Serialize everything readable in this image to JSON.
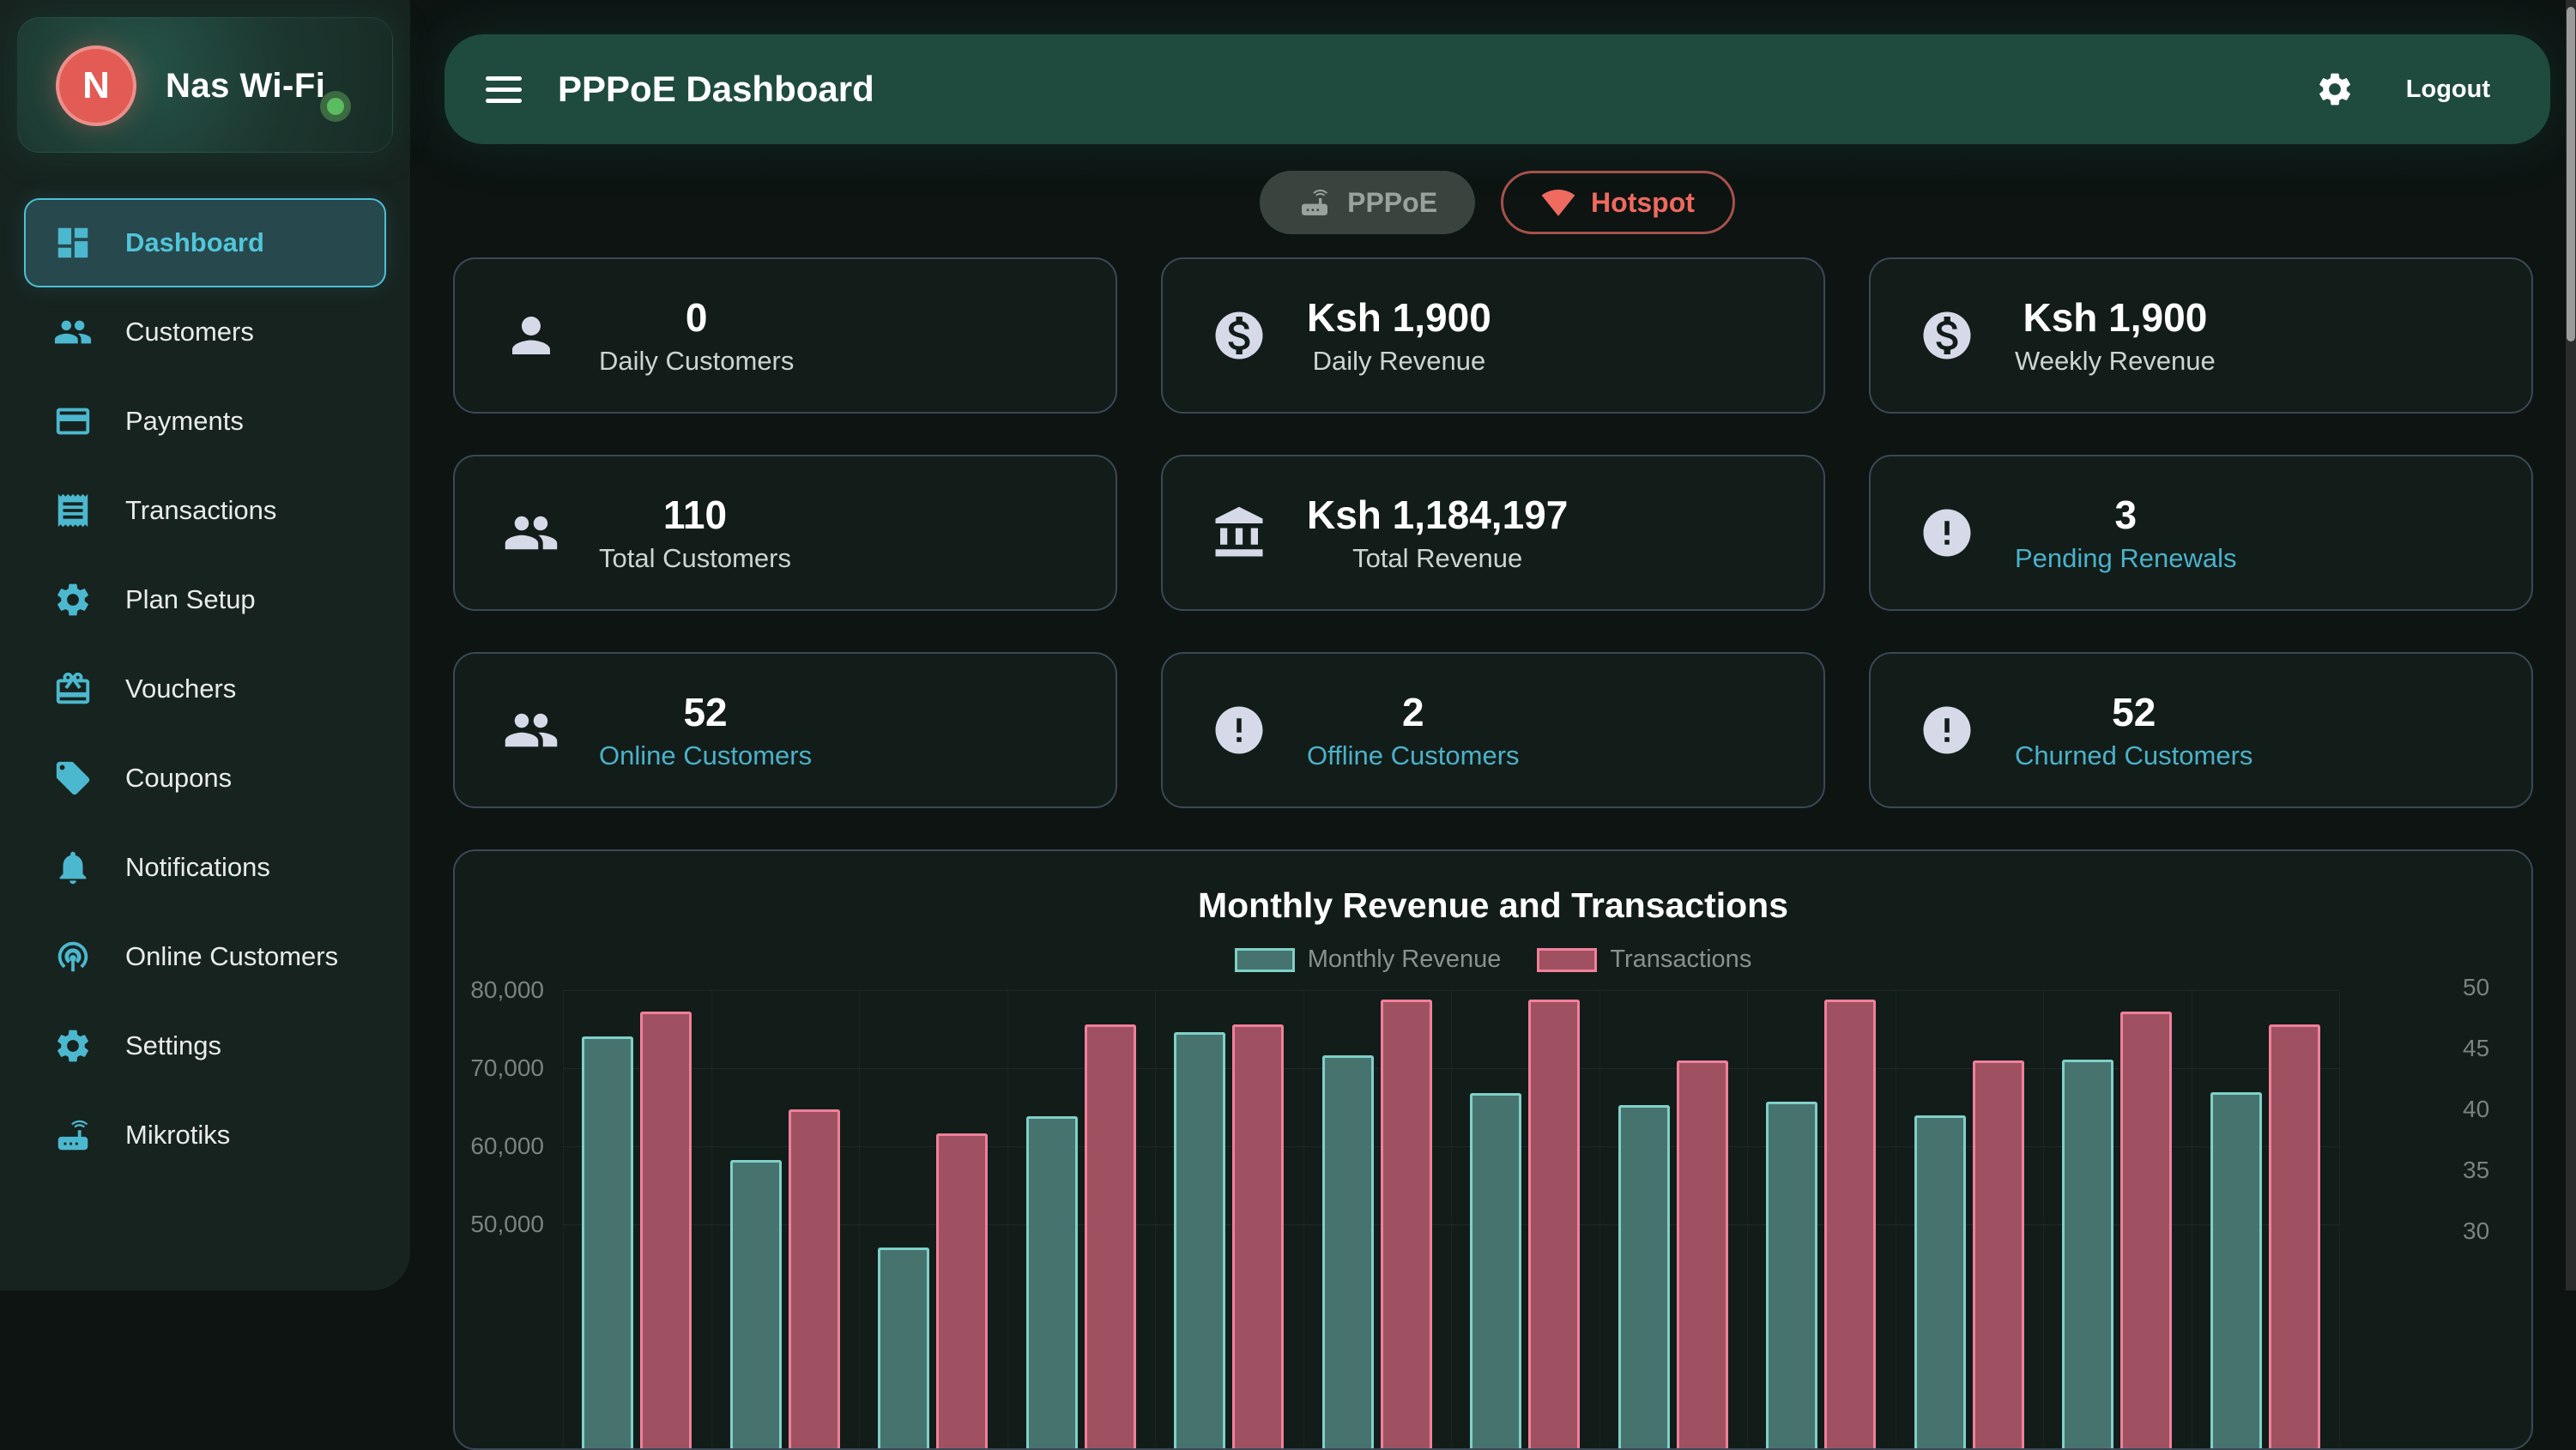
{
  "sidebar": {
    "brand": {
      "initial": "N",
      "name": "Nas Wi-Fi",
      "status": "online"
    },
    "items": [
      {
        "label": "Dashboard",
        "icon": "dashboard",
        "active": true
      },
      {
        "label": "Customers",
        "icon": "people",
        "active": false
      },
      {
        "label": "Payments",
        "icon": "credit-card",
        "active": false
      },
      {
        "label": "Transactions",
        "icon": "receipt",
        "active": false
      },
      {
        "label": "Plan Setup",
        "icon": "gear",
        "active": false
      },
      {
        "label": "Vouchers",
        "icon": "gift",
        "active": false
      },
      {
        "label": "Coupons",
        "icon": "tag",
        "active": false
      },
      {
        "label": "Notifications",
        "icon": "bell",
        "active": false
      },
      {
        "label": "Online Customers",
        "icon": "broadcast",
        "active": false
      },
      {
        "label": "Settings",
        "icon": "gear",
        "active": false
      },
      {
        "label": "Mikrotiks",
        "icon": "router",
        "active": false
      }
    ]
  },
  "topbar": {
    "title": "PPPoE Dashboard",
    "logout_label": "Logout"
  },
  "mode_toggle": {
    "pppoe_label": "PPPoE",
    "hotspot_label": "Hotspot"
  },
  "stats": [
    {
      "value": "0",
      "label": "Daily Customers",
      "icon": "person",
      "accent": false
    },
    {
      "value": "Ksh 1,900",
      "label": "Daily Revenue",
      "icon": "dollar",
      "accent": false
    },
    {
      "value": "Ksh 1,900",
      "label": "Weekly Revenue",
      "icon": "dollar",
      "accent": false
    },
    {
      "value": "110",
      "label": "Total Customers",
      "icon": "people",
      "accent": false
    },
    {
      "value": "Ksh 1,184,197",
      "label": "Total Revenue",
      "icon": "bank",
      "accent": false
    },
    {
      "value": "3",
      "label": "Pending Renewals",
      "icon": "alert",
      "accent": true
    },
    {
      "value": "52",
      "label": "Online Customers",
      "icon": "people",
      "accent": true
    },
    {
      "value": "2",
      "label": "Offline Customers",
      "icon": "alert",
      "accent": true
    },
    {
      "value": "52",
      "label": "Churned Customers",
      "icon": "alert",
      "accent": true
    }
  ],
  "chart_data": {
    "type": "bar",
    "title": "Monthly Revenue and Transactions",
    "legend_position": "top",
    "grid": true,
    "x_tick_labels_visible": false,
    "series": [
      {
        "name": "Monthly Revenue",
        "axis": "left",
        "color": "#47736f",
        "border_color": "#7ed0c8",
        "values": [
          74100,
          58200,
          47000,
          63900,
          74600,
          71700,
          66800,
          65300,
          65700,
          64000,
          71100,
          66900
        ]
      },
      {
        "name": "Transactions",
        "axis": "right",
        "color": "#a05161",
        "border_color": "#f0809a",
        "values": [
          48,
          40,
          38,
          47,
          47,
          49,
          49,
          44,
          49,
          44,
          48,
          47
        ]
      }
    ],
    "left_axis": {
      "tick_labels": [
        "80,000",
        "70,000",
        "60,000",
        "50,000"
      ],
      "tick_values": [
        80000,
        70000,
        60000,
        50000
      ]
    },
    "right_axis": {
      "tick_labels": [
        "50",
        "45",
        "40",
        "35",
        "30"
      ],
      "tick_values": [
        50,
        45,
        40,
        35,
        30
      ]
    }
  },
  "colors": {
    "accent_teal": "#4cc0d5",
    "sidebar_icon_teal": "#4cb8cf",
    "topbar_green": "#1f4b3e",
    "avatar_red": "#e25c55",
    "status_green": "#5bbb5f",
    "hotspot_red": "#ef6a5f",
    "stat_link_teal": "#4cb1c9",
    "revenue_bar": "#47736f",
    "revenue_border": "#7ed0c8",
    "transactions_bar": "#a05161",
    "transactions_border": "#f0809a"
  }
}
